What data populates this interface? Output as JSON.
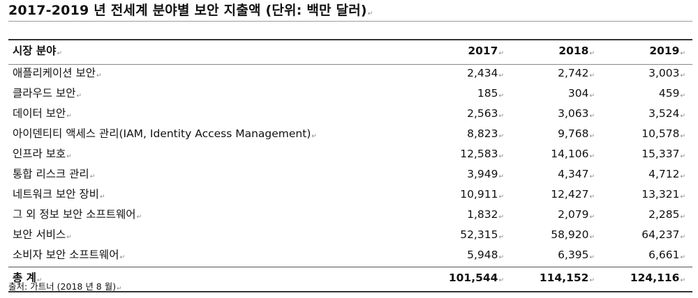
{
  "title": "2017-2019 년 전세계 분야별 보안 지출액 (단위: 백만 달러)",
  "paragraph_mark": "↵",
  "table": {
    "headers": [
      "시장 분야",
      "2017",
      "2018",
      "2019"
    ],
    "rows": [
      {
        "name": "애플리케이션 보안",
        "values": [
          "2,434",
          "2,742",
          "3,003"
        ]
      },
      {
        "name": "클라우드 보안",
        "values": [
          "185",
          "304",
          "459"
        ]
      },
      {
        "name": "데이터 보안",
        "values": [
          "2,563",
          "3,063",
          "3,524"
        ]
      },
      {
        "name": "아이덴티티 액세스 관리(IAM, Identity Access Management)",
        "values": [
          "8,823",
          "9,768",
          "10,578"
        ]
      },
      {
        "name": "인프라 보호",
        "values": [
          "12,583",
          "14,106",
          "15,337"
        ]
      },
      {
        "name": "통합 리스크 관리",
        "values": [
          "3,949",
          "4,347",
          "4,712"
        ]
      },
      {
        "name": "네트워크 보안 장비",
        "values": [
          "10,911",
          "12,427",
          "13,321"
        ]
      },
      {
        "name": "그 외 정보 보안 소프트웨어",
        "values": [
          "1,832",
          "2,079",
          "2,285"
        ]
      },
      {
        "name": "보안 서비스",
        "values": [
          "52,315",
          "58,920",
          "64,237"
        ]
      },
      {
        "name": "소비자 보안 소프트웨어",
        "values": [
          "5,948",
          "6,395",
          "6,661"
        ]
      }
    ],
    "total": {
      "name": "총 계",
      "values": [
        "101,544",
        "114,152",
        "124,116"
      ]
    }
  },
  "source": "출처: 가트너 (2018 년 8 월)"
}
